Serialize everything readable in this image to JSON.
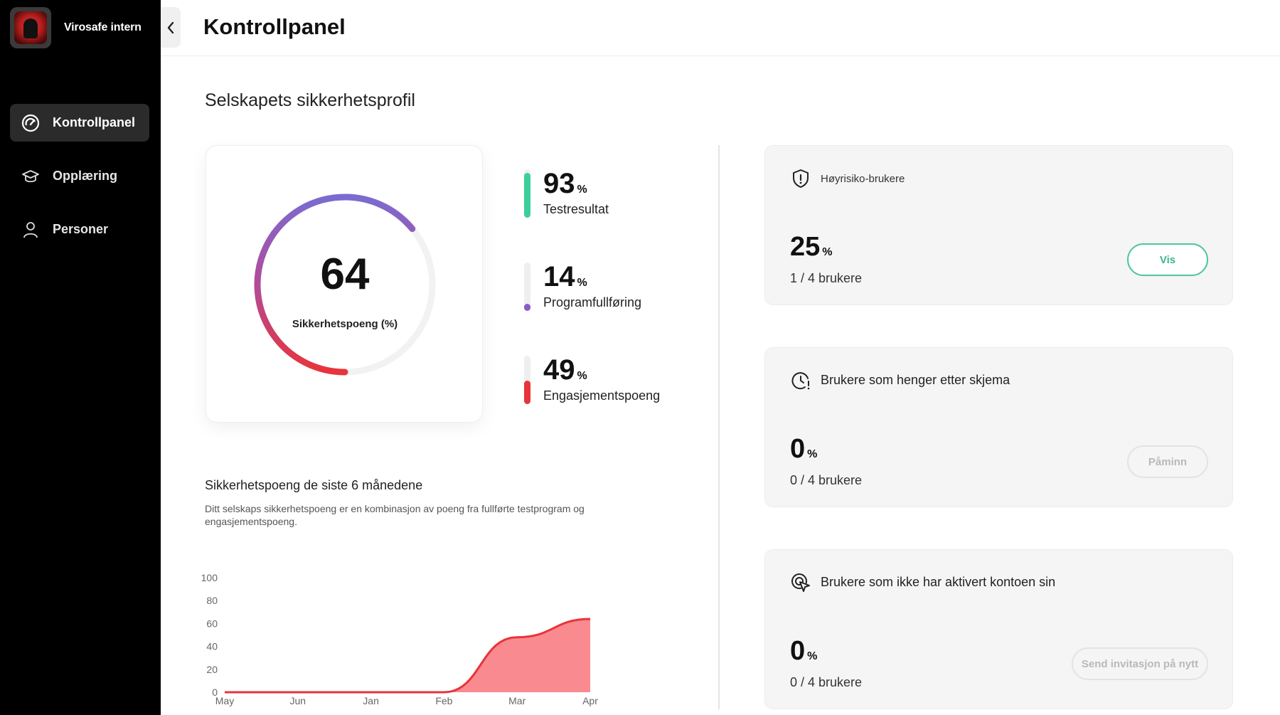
{
  "brand": {
    "name": "Virosafe intern"
  },
  "nav": {
    "items": [
      {
        "label": "Kontrollpanel",
        "icon": "gauge-icon",
        "active": true
      },
      {
        "label": "Opplæring",
        "icon": "graduation-cap-icon",
        "active": false
      },
      {
        "label": "Personer",
        "icon": "person-icon",
        "active": false
      }
    ]
  },
  "header": {
    "title": "Kontrollpanel"
  },
  "section": {
    "title": "Selskapets sikkerhetsprofil"
  },
  "score": {
    "value": "64",
    "label": "Sikkerhetspoeng (%)",
    "percent": 64
  },
  "metrics": [
    {
      "value": "93",
      "unit": "%",
      "label": "Testresultat",
      "percent": 93,
      "color": "#3ccf9a"
    },
    {
      "value": "14",
      "unit": "%",
      "label": "Programfullføring",
      "percent": 14,
      "color": "#8a5cc9"
    },
    {
      "value": "49",
      "unit": "%",
      "label": "Engasjementspoeng",
      "percent": 49,
      "color": "#e8343a"
    }
  ],
  "trend": {
    "title": "Sikkerhetspoeng de siste 6 månedene",
    "description": "Ditt selskaps sikkerhetspoeng er en kombinasjon av poeng fra fullførte testprogram og engasjementspoeng."
  },
  "chart_data": {
    "type": "area",
    "categories": [
      "May",
      "Jun",
      "Jan",
      "Feb",
      "Mar",
      "Apr"
    ],
    "values": [
      0,
      0,
      0,
      0,
      48,
      64
    ],
    "ylim": [
      0,
      100
    ],
    "yticks": [
      "100",
      "80",
      "60",
      "40",
      "20",
      "0"
    ],
    "title": "",
    "xlabel": "",
    "ylabel": "",
    "color": "#e8343a",
    "fill": "#f98a8f"
  },
  "cards": [
    {
      "icon": "shield-alert-icon",
      "title": "Høyrisiko-brukere",
      "value": "25",
      "unit": "%",
      "sub": "1 / 4 brukere",
      "button": "Vis"
    },
    {
      "icon": "clock-alert-icon",
      "title": "Brukere som henger etter skjema",
      "value": "0",
      "unit": "%",
      "sub": "0 / 4 brukere",
      "button": "Påminn"
    },
    {
      "icon": "cursor-click-icon",
      "title": "Brukere som ikke har aktivert kontoen sin",
      "value": "0",
      "unit": "%",
      "sub": "0 / 4 brukere",
      "button": "Send invitasjon på nytt"
    }
  ],
  "colors": {
    "accent_green": "#3fb489",
    "sidebar": "#000000",
    "score_start": "#7b6bd0",
    "score_end": "#e8343a"
  }
}
